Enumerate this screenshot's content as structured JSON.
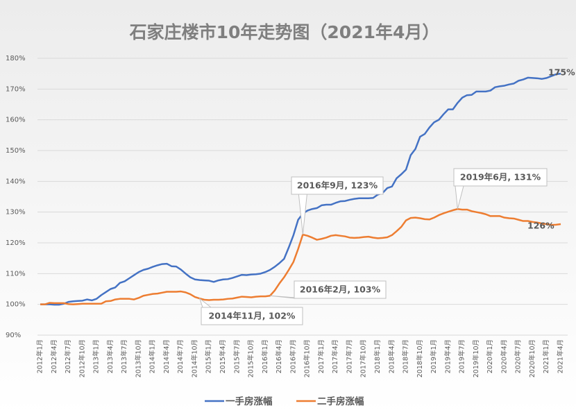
{
  "chart_data": {
    "type": "line",
    "title": "石家庄楼市10年走势图（2021年4月）",
    "categories": [
      "2012年1月",
      null,
      null,
      "2012年4月",
      null,
      null,
      "2012年7月",
      null,
      null,
      "2012年10月",
      null,
      null,
      "2013年1月",
      null,
      null,
      "2013年4月",
      null,
      null,
      "2013年7月",
      null,
      null,
      "2013年10月",
      null,
      null,
      "2014年1月",
      null,
      null,
      "2014年4月",
      null,
      null,
      "2014年7月",
      null,
      null,
      "2014年10月",
      null,
      null,
      "2015年1月",
      null,
      null,
      "2015年4月",
      null,
      null,
      "2015年7月",
      null,
      null,
      "2015年10月",
      null,
      null,
      "2016年1月",
      null,
      null,
      "2016年4月",
      null,
      null,
      "2016年7月",
      null,
      null,
      "2016年10月",
      null,
      null,
      "2017年1月",
      null,
      null,
      "2017年4月",
      null,
      null,
      "2017年7月",
      null,
      null,
      "2017年10月",
      null,
      null,
      "2018年1月",
      null,
      null,
      "2018年4月",
      null,
      null,
      "2018年7月",
      null,
      null,
      "2018年10月",
      null,
      null,
      "2019年1月",
      null,
      null,
      "2019年4月",
      null,
      null,
      "2019年7月",
      null,
      null,
      "2019年10月",
      null,
      null,
      "2020年1月",
      null,
      null,
      "2020年4月",
      null,
      null,
      "2020年7月",
      null,
      null,
      "2020年10月",
      null,
      null,
      "2021年1月",
      null,
      null,
      "2021年4月"
    ],
    "series": [
      {
        "name": "一手房涨幅",
        "color": "#4472c4",
        "values": [
          100,
          100,
          100,
          99.9,
          99.9,
          100.2,
          100.8,
          101,
          101.1,
          101.2,
          101.6,
          101.3,
          101.8,
          103,
          104,
          105,
          105.5,
          107,
          107.5,
          108.5,
          109.5,
          110.5,
          111.2,
          111.6,
          112.2,
          112.7,
          113.1,
          113.2,
          112.4,
          112.3,
          111.3,
          110,
          108.8,
          108.1,
          107.9,
          107.8,
          107.7,
          107.3,
          107.8,
          108.1,
          108.2,
          108.6,
          109.1,
          109.6,
          109.5,
          109.7,
          109.8,
          110,
          110.5,
          111.2,
          112.2,
          113.4,
          114.8,
          118.5,
          122.5,
          127.5,
          129.5,
          130.5,
          131,
          131.3,
          132.2,
          132.4,
          132.4,
          133,
          133.5,
          133.6,
          134,
          134.3,
          134.5,
          134.5,
          134.5,
          134.6,
          135.7,
          136.2,
          137.8,
          138.3,
          141,
          142.3,
          143.8,
          148.5,
          150.5,
          154.5,
          155.4,
          157.5,
          159.2,
          160,
          161.8,
          163.4,
          163.4,
          165.5,
          167.2,
          168,
          168.1,
          169.2,
          169.2,
          169.2,
          169.5,
          170.6,
          170.9,
          171.1,
          171.5,
          171.8,
          172.7,
          173.1,
          173.7,
          173.6,
          173.5,
          173.3,
          173.6,
          174.2,
          174.8,
          175
        ]
      },
      {
        "name": "二手房涨幅",
        "color": "#ed7d31",
        "values": [
          100,
          100,
          100.5,
          100.4,
          100.4,
          100.4,
          100.1,
          100,
          100.1,
          100.2,
          100.2,
          100.2,
          100.2,
          100.2,
          101,
          101.1,
          101.6,
          101.8,
          101.8,
          101.8,
          101.6,
          102.1,
          102.8,
          103.1,
          103.4,
          103.5,
          103.8,
          104.1,
          104.1,
          104.1,
          104.2,
          103.9,
          103.3,
          102.4,
          101.9,
          101.5,
          101.4,
          101.5,
          101.5,
          101.6,
          101.8,
          101.9,
          102.2,
          102.5,
          102.4,
          102.3,
          102.5,
          102.6,
          102.6,
          102.8,
          104.5,
          106.8,
          108.8,
          111.2,
          113.8,
          118,
          122.7,
          122.3,
          121.7,
          121,
          121.3,
          121.7,
          122.3,
          122.5,
          122.3,
          122.1,
          121.7,
          121.6,
          121.7,
          121.9,
          122,
          121.7,
          121.5,
          121.6,
          121.8,
          122.5,
          123.8,
          125.2,
          127.3,
          128.1,
          128.2,
          128,
          127.7,
          127.6,
          128.2,
          129,
          129.6,
          130.1,
          130.6,
          131,
          130.8,
          130.8,
          130.3,
          130,
          129.7,
          129.3,
          128.7,
          128.7,
          128.7,
          128.2,
          128,
          127.9,
          127.5,
          127.1,
          127.1,
          126.8,
          126.6,
          126.3,
          126.1,
          125.8,
          125.9,
          126.1
        ]
      }
    ],
    "ylim": [
      90,
      180
    ],
    "yticks": [
      {
        "value": 90,
        "label": "90%"
      },
      {
        "value": 100,
        "label": "100%"
      },
      {
        "value": 110,
        "label": "110%"
      },
      {
        "value": 120,
        "label": "120%"
      },
      {
        "value": 130,
        "label": "130%"
      },
      {
        "value": 140,
        "label": "140%"
      },
      {
        "value": 150,
        "label": "150%"
      },
      {
        "value": 160,
        "label": "160%"
      },
      {
        "value": 170,
        "label": "170%"
      },
      {
        "value": 180,
        "label": "180%"
      }
    ],
    "grid": true,
    "legend": "bottom",
    "annotations": [
      "2016年9月, 123%",
      "2019年6月, 131%",
      "2016年2月, 103%",
      "2014年11月, 102%",
      "175%",
      "126%"
    ]
  }
}
